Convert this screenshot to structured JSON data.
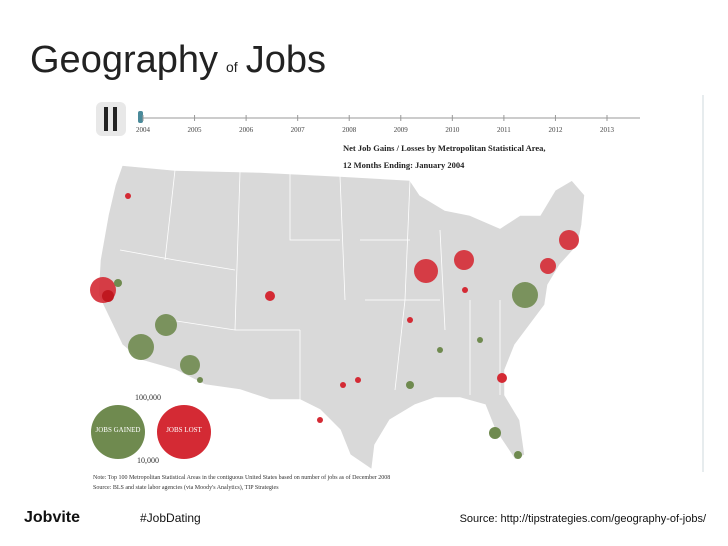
{
  "title": {
    "word1": "Geography",
    "word2": "of",
    "word3": "Jobs"
  },
  "timeline": {
    "years": [
      "2004",
      "2005",
      "2006",
      "2007",
      "2008",
      "2009",
      "2010",
      "2011",
      "2012",
      "2013"
    ]
  },
  "map_header": {
    "line1": "Net Job Gains / Losses by  Metropolitan Statistical Area,",
    "line2": "12 Months Ending:  January  2004"
  },
  "legend": {
    "top_value": "100,000",
    "gained": "JOBS GAINED",
    "lost": "JOBS LOST",
    "bottom_value": "10,000"
  },
  "notes": {
    "note": "Note:  Top 100 Metropolitan Statistical Areas in the contiguous United States based on number of jobs as of December 2008",
    "source": "Source:  BLS and state labor agencies (via Moody's Analytics), TIP Strategies"
  },
  "footer": {
    "brand": "Jobvite",
    "hashtag": "#JobDating",
    "source": "Source: http://tipstrategies.com/geography-of-jobs/"
  }
}
